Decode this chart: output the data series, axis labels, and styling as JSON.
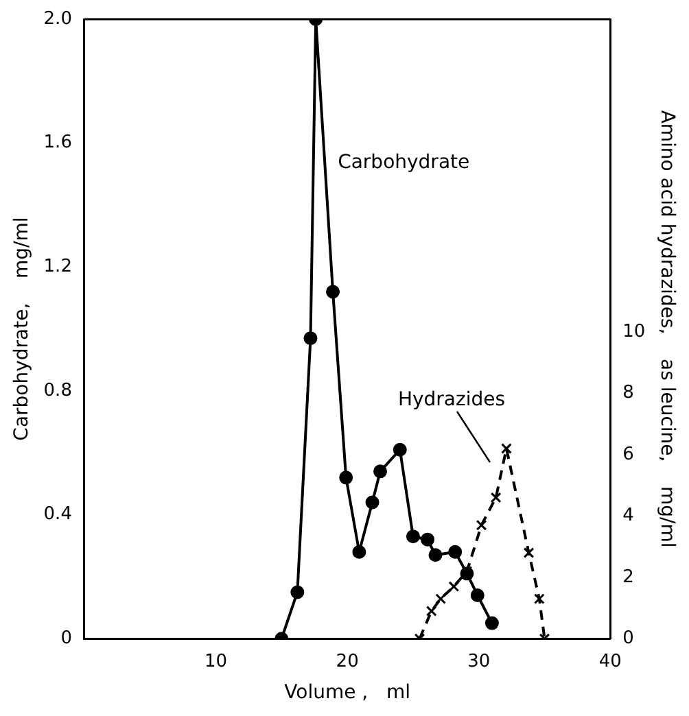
{
  "chart_data": {
    "type": "line",
    "xlabel": "Volume ,   ml",
    "ylabel": "Carbohydrate,    mg/ml",
    "y2label": "Amino acid hydrazides,    as leucine,    mg/ml",
    "xlim": [
      0,
      40
    ],
    "xticks": [
      10,
      20,
      30,
      40
    ],
    "ylim": [
      0,
      2.0
    ],
    "yticks": [
      0,
      {
        "value": 0.4,
        "label": "0.4"
      },
      {
        "value": 0.8,
        "label": "0.8"
      },
      {
        "value": 1.2,
        "label": "1.2"
      },
      {
        "value": 1.6,
        "label": "1.6"
      },
      {
        "value": 2,
        "label": "2.0"
      }
    ],
    "y2lim": [
      0,
      20.2
    ],
    "y2ticks": [
      0,
      2,
      4,
      6,
      8,
      10
    ],
    "grid": false,
    "legend": false,
    "series": [
      {
        "name": "Carbohydrate",
        "color": "#000000",
        "marker": "circle",
        "line_style": "solid",
        "x": [
          15,
          16.2,
          17.2,
          17.6,
          18.9,
          19.9,
          20.9,
          21.9,
          22.5,
          24.0,
          25.0,
          26.1,
          26.7,
          28.2,
          29.1,
          29.9,
          31.0
        ],
        "values": [
          0,
          0.15,
          0.97,
          2.0,
          1.12,
          0.52,
          0.28,
          0.44,
          0.54,
          0.61,
          0.33,
          0.32,
          0.27,
          0.28,
          0.21,
          0.14,
          0.05
        ]
      },
      {
        "name": "Hydrazides",
        "color": "#000000",
        "marker": "cross",
        "line_style": "dashed",
        "axis": "y2",
        "x": [
          25.5,
          26.4,
          27.1,
          28.1,
          29.1,
          30.2,
          31.3,
          32.1,
          33.8,
          34.6,
          35.0
        ],
        "values": [
          0,
          0.9,
          1.3,
          1.7,
          2.2,
          3.7,
          4.6,
          6.2,
          2.8,
          1.3,
          0
        ]
      }
    ]
  }
}
